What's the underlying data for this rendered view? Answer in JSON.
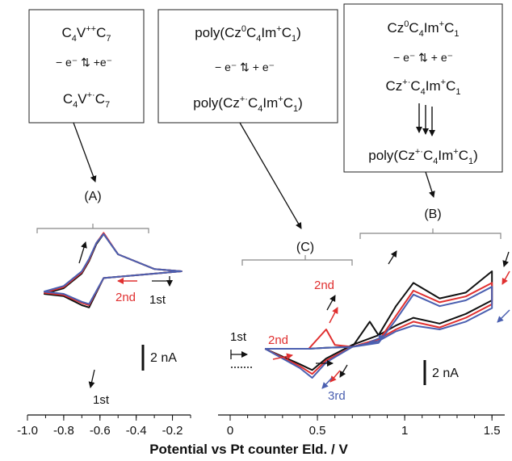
{
  "boxes": {
    "a": {
      "line1": "C4V++C7",
      "arrows": "− e⁻ ↑↓ +e⁻",
      "line2": "C4V+·C7"
    },
    "c": {
      "line1": "poly(Cz0C4Im+C1)",
      "arrows": "− e⁻ ↑↓ + e⁻",
      "line2": "poly(Cz+·C4Im+C1)"
    },
    "b": {
      "line1": "Cz0C4Im+C1",
      "arrows": "− e⁻ ↑↓ + e⁻",
      "line2": "Cz+·C4Im+C1",
      "line3": "poly(Cz+·C4Im+C1)"
    }
  },
  "labels": {
    "a": "(A)",
    "b": "(B)",
    "c": "(C)",
    "first_a": "1st",
    "first_a_bottom": "1st",
    "second_a": "2nd",
    "first_c": "1st",
    "second_c": "2nd",
    "second_b": "2nd",
    "third": "3rd",
    "scale_a": "2 nA",
    "scale_b": "2 nA"
  },
  "xlabel": "Potential vs Pt counter Eld. / V",
  "chart_data": [
    {
      "type": "line",
      "title": "",
      "xlim": [
        -1.0,
        -0.1
      ],
      "xticks": [
        "-1.0",
        "-0.8",
        "-0.6",
        "-0.4",
        "-0.2"
      ],
      "series": [
        {
          "color": "#111111",
          "x": [
            -0.91,
            -0.8,
            -0.7,
            -0.66,
            -0.62,
            -0.58,
            -0.5,
            -0.3,
            -0.15,
            -0.58,
            -0.66,
            -0.7,
            -0.8,
            -0.91
          ],
          "y": [
            -1.0,
            -0.5,
            0.8,
            1.9,
            3.4,
            4.3,
            2.5,
            1.2,
            1.0,
            0.4,
            -2.2,
            -2.0,
            -1.2,
            -1.0
          ]
        },
        {
          "color": "#e03030",
          "x": [
            -0.91,
            -0.8,
            -0.7,
            -0.66,
            -0.62,
            -0.58,
            -0.5,
            -0.3,
            -0.15,
            -0.58,
            -0.66,
            -0.7,
            -0.8,
            -0.91
          ],
          "y": [
            -0.9,
            -0.4,
            0.9,
            2.0,
            3.5,
            4.4,
            2.5,
            1.2,
            1.0,
            0.4,
            -2.0,
            -1.8,
            -1.1,
            -0.9
          ]
        },
        {
          "color": "#4a5fb0",
          "x": [
            -0.91,
            -0.8,
            -0.7,
            -0.66,
            -0.62,
            -0.58,
            -0.5,
            -0.3,
            -0.15,
            -0.58,
            -0.66,
            -0.7,
            -0.8,
            -0.91
          ],
          "y": [
            -0.8,
            -0.3,
            1.0,
            2.1,
            3.5,
            4.3,
            2.5,
            1.2,
            1.0,
            0.4,
            -1.9,
            -1.7,
            -1.0,
            -0.8
          ]
        }
      ]
    },
    {
      "type": "line",
      "title": "",
      "xlim": [
        0,
        1.55
      ],
      "xticks": [
        "0",
        "0.5",
        "1",
        "1.5"
      ],
      "series": [
        {
          "color": "#111111",
          "x": [
            0.2,
            0.45,
            0.55,
            0.7,
            0.8,
            0.85,
            0.95,
            1.05,
            1.2,
            1.35,
            1.5,
            1.5,
            1.35,
            1.2,
            1.05,
            0.95,
            0.85,
            0.7,
            0.55,
            0.47,
            0.4,
            0.2
          ],
          "y": [
            0,
            0,
            0.05,
            0.1,
            1.4,
            0.7,
            2.2,
            3.4,
            2.6,
            2.9,
            4.0,
            2.5,
            1.8,
            1.3,
            1.6,
            1.2,
            0.7,
            0.2,
            -0.5,
            -1.1,
            -0.8,
            0
          ]
        },
        {
          "color": "#e03030",
          "x": [
            0.2,
            0.45,
            0.55,
            0.6,
            0.7,
            0.85,
            0.95,
            1.05,
            1.2,
            1.35,
            1.5,
            1.5,
            1.35,
            1.2,
            1.05,
            0.95,
            0.85,
            0.7,
            0.55,
            0.47,
            0.4,
            0.2
          ],
          "y": [
            0,
            0,
            1.0,
            0.2,
            0.1,
            0.4,
            1.7,
            3.0,
            2.4,
            2.7,
            3.4,
            2.3,
            1.6,
            1.1,
            1.4,
            1.0,
            0.5,
            0.1,
            -0.6,
            -1.3,
            -0.9,
            0
          ]
        },
        {
          "color": "#4a5fb0",
          "x": [
            0.2,
            0.45,
            0.55,
            0.7,
            0.85,
            0.95,
            1.05,
            1.2,
            1.35,
            1.5,
            1.5,
            1.35,
            1.2,
            1.05,
            0.95,
            0.85,
            0.7,
            0.55,
            0.47,
            0.4,
            0.2
          ],
          "y": [
            0,
            0,
            0.05,
            0.1,
            0.3,
            1.5,
            2.8,
            2.2,
            2.5,
            3.2,
            2.1,
            1.4,
            1.0,
            1.2,
            0.9,
            0.4,
            0.1,
            -0.7,
            -1.5,
            -1.0,
            0
          ]
        }
      ]
    }
  ]
}
